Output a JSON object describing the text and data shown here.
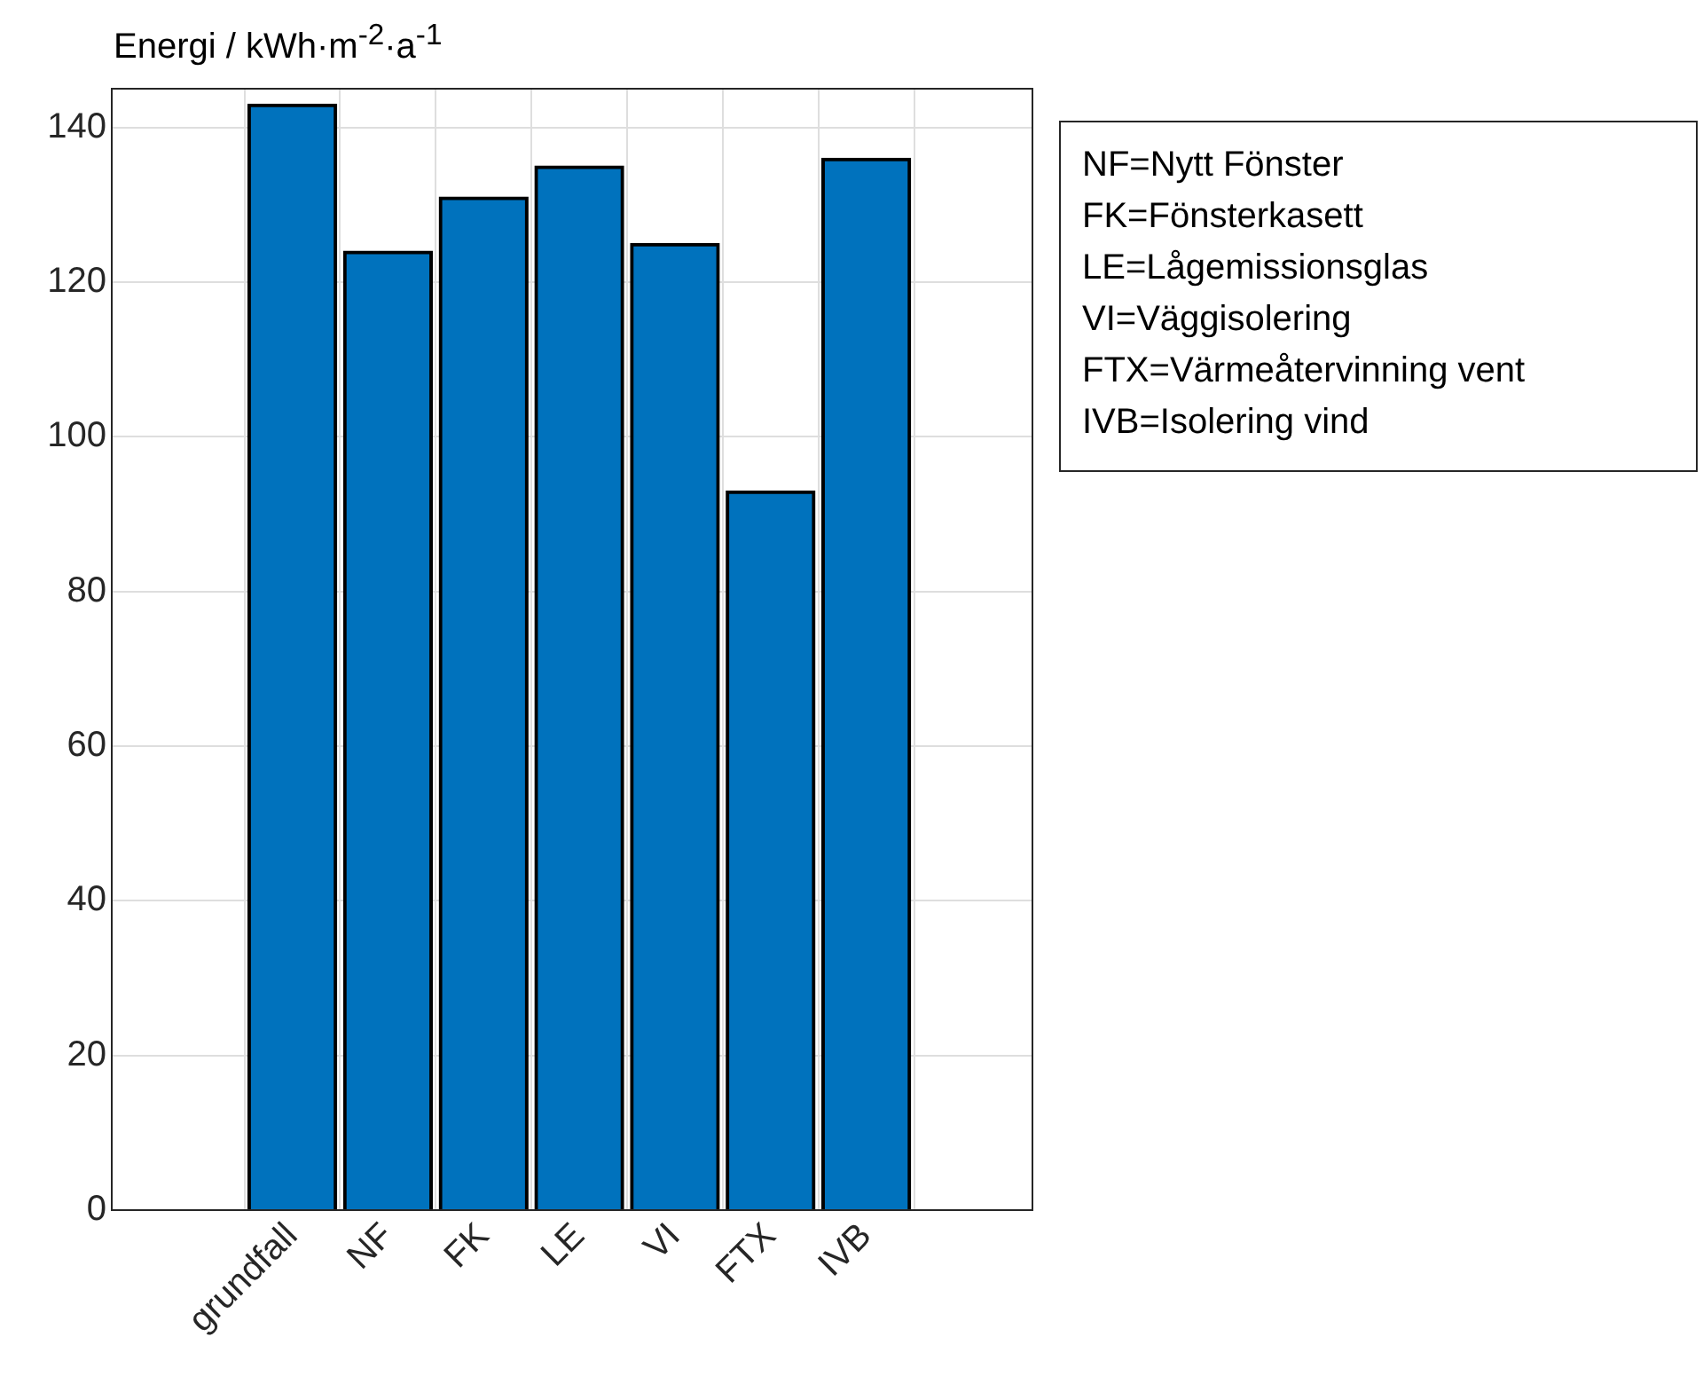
{
  "chart_data": {
    "type": "bar",
    "ylabel": "Energi / kWh·m$^{-2}$·a$^{-1}$",
    "categories": [
      "grundfall",
      "NF",
      "FK",
      "LE",
      "VI",
      "FTX",
      "IVB"
    ],
    "values": [
      143,
      124,
      131,
      135,
      125,
      93,
      136
    ],
    "color": "#0072bd",
    "ylim": [
      0,
      145
    ],
    "yticks": [
      0,
      20,
      40,
      60,
      80,
      100,
      120,
      140
    ],
    "grid": true,
    "legend": false,
    "annotations": [
      "NF=Nytt Fönster",
      "FK=Fönsterkasett",
      "LE=Lågemissionsglas",
      "VI=Väggisolering",
      "FTX=Värmeåtervinning vent",
      "IVB=Isolering vind"
    ]
  }
}
